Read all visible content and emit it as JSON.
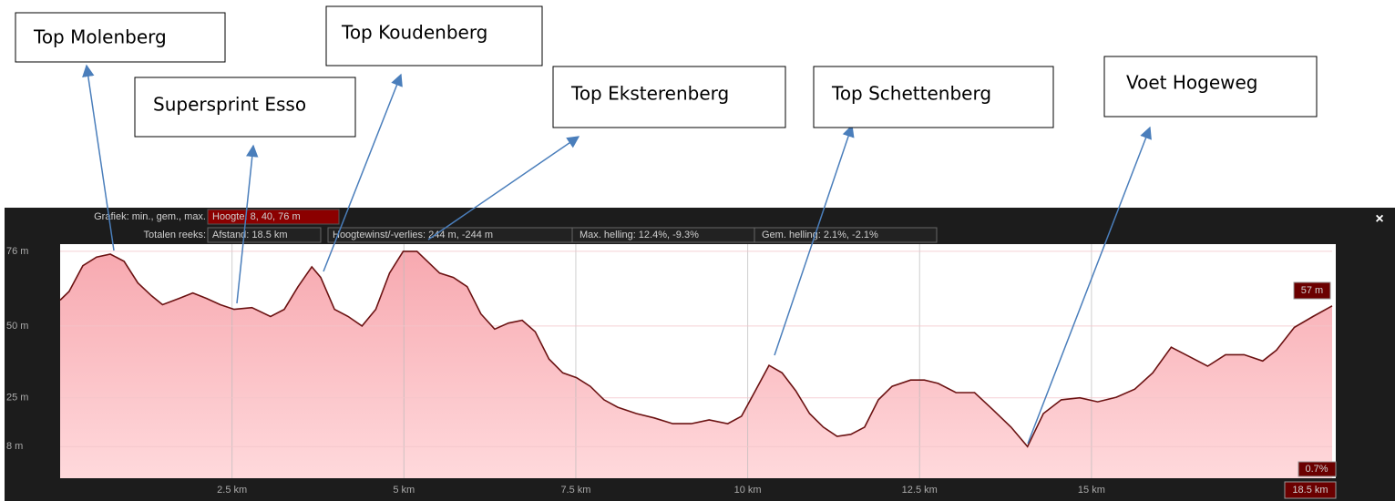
{
  "chart_data": {
    "type": "area",
    "header": {
      "graph_label": "Grafiek: min., gem., max.",
      "height": "Hoogte: 8, 40, 76 m",
      "totals_label": "Totalen reeks:",
      "distance": "Afstand: 18.5 km",
      "gain_loss": "Hoogtewinst/-verlies: 244 m, -244 m",
      "max_slope": "Max. helling: 12.4%, -9.3%",
      "avg_slope": "Gem. helling: 2.1%, -2.1%"
    },
    "end_value_label": "57 m",
    "end_slope_label": "0.7%",
    "end_distance_label": "18.5 km",
    "close": "×",
    "annotations": [
      "Top Molenberg",
      "Supersprint Esso",
      "Top Koudenberg",
      "Top Eksterenberg",
      "Top Schettenberg",
      "Voet Hogeweg"
    ],
    "x": [
      0,
      0.13,
      0.33,
      0.53,
      0.73,
      0.93,
      1.13,
      1.33,
      1.49,
      1.73,
      1.93,
      2.13,
      2.33,
      2.53,
      2.79,
      3.06,
      3.26,
      3.46,
      3.66,
      3.79,
      3.99,
      4.19,
      4.39,
      4.59,
      4.79,
      4.99,
      5.19,
      5.32,
      5.52,
      5.72,
      5.92,
      6.12,
      6.32,
      6.52,
      6.72,
      6.91,
      7.11,
      7.31,
      7.51,
      7.71,
      7.91,
      8.11,
      8.38,
      8.64,
      8.91,
      9.18,
      9.44,
      9.71,
      9.91,
      10.11,
      10.31,
      10.5,
      10.7,
      10.9,
      11.1,
      11.3,
      11.5,
      11.7,
      11.9,
      12.1,
      12.37,
      12.57,
      12.77,
      13.03,
      13.3,
      13.56,
      13.83,
      14.07,
      14.3,
      14.56,
      14.83,
      15.09,
      15.36,
      15.63,
      15.89,
      16.16,
      16.42,
      16.69,
      16.95,
      17.22,
      17.49,
      17.69,
      17.95,
      18.22,
      18.5
    ],
    "series": [
      {
        "name": "Hoogte",
        "color": "#6b1212",
        "fill": "#f9b8bd",
        "values": [
          59,
          62,
          71,
          74,
          75,
          72.5,
          65,
          60.5,
          57.4,
          59.6,
          61.5,
          59.6,
          57.4,
          55.8,
          56.4,
          53.3,
          55.8,
          63.7,
          70.6,
          66.9,
          55.8,
          53.3,
          50,
          55.8,
          68.4,
          76,
          76,
          73,
          68.4,
          66.9,
          63.7,
          54.2,
          48.9,
          51,
          52,
          48,
          38.5,
          33.7,
          32,
          29,
          24.3,
          21.7,
          19.5,
          18,
          16,
          16,
          17.3,
          16,
          18.6,
          27.4,
          36.3,
          33.7,
          27.4,
          19.5,
          14.8,
          11.6,
          12.3,
          14.8,
          24.3,
          29,
          31.2,
          31.2,
          30,
          26.8,
          26.8,
          21,
          14.8,
          8,
          19.5,
          24.3,
          25,
          23.6,
          25.2,
          28,
          33.7,
          42.6,
          39.4,
          36,
          40,
          40,
          37.8,
          41.6,
          49.5,
          53.3,
          57
        ]
      }
    ],
    "xlim": [
      0,
      18.5
    ],
    "ylim": [
      -3,
      78.5
    ],
    "xticks": [
      {
        "value": 2.5,
        "label": "2.5 km"
      },
      {
        "value": 5,
        "label": "5 km"
      },
      {
        "value": 7.5,
        "label": "7.5 km"
      },
      {
        "value": 10,
        "label": "10 km"
      },
      {
        "value": 12.5,
        "label": "12.5 km"
      },
      {
        "value": 15,
        "label": "15 km"
      }
    ],
    "yticks": [
      {
        "value": 76,
        "label": "76 m"
      },
      {
        "value": 50,
        "label": "50 m"
      },
      {
        "value": 25,
        "label": "25 m"
      },
      {
        "value": 8,
        "label": "8 m"
      }
    ],
    "grid": true
  }
}
